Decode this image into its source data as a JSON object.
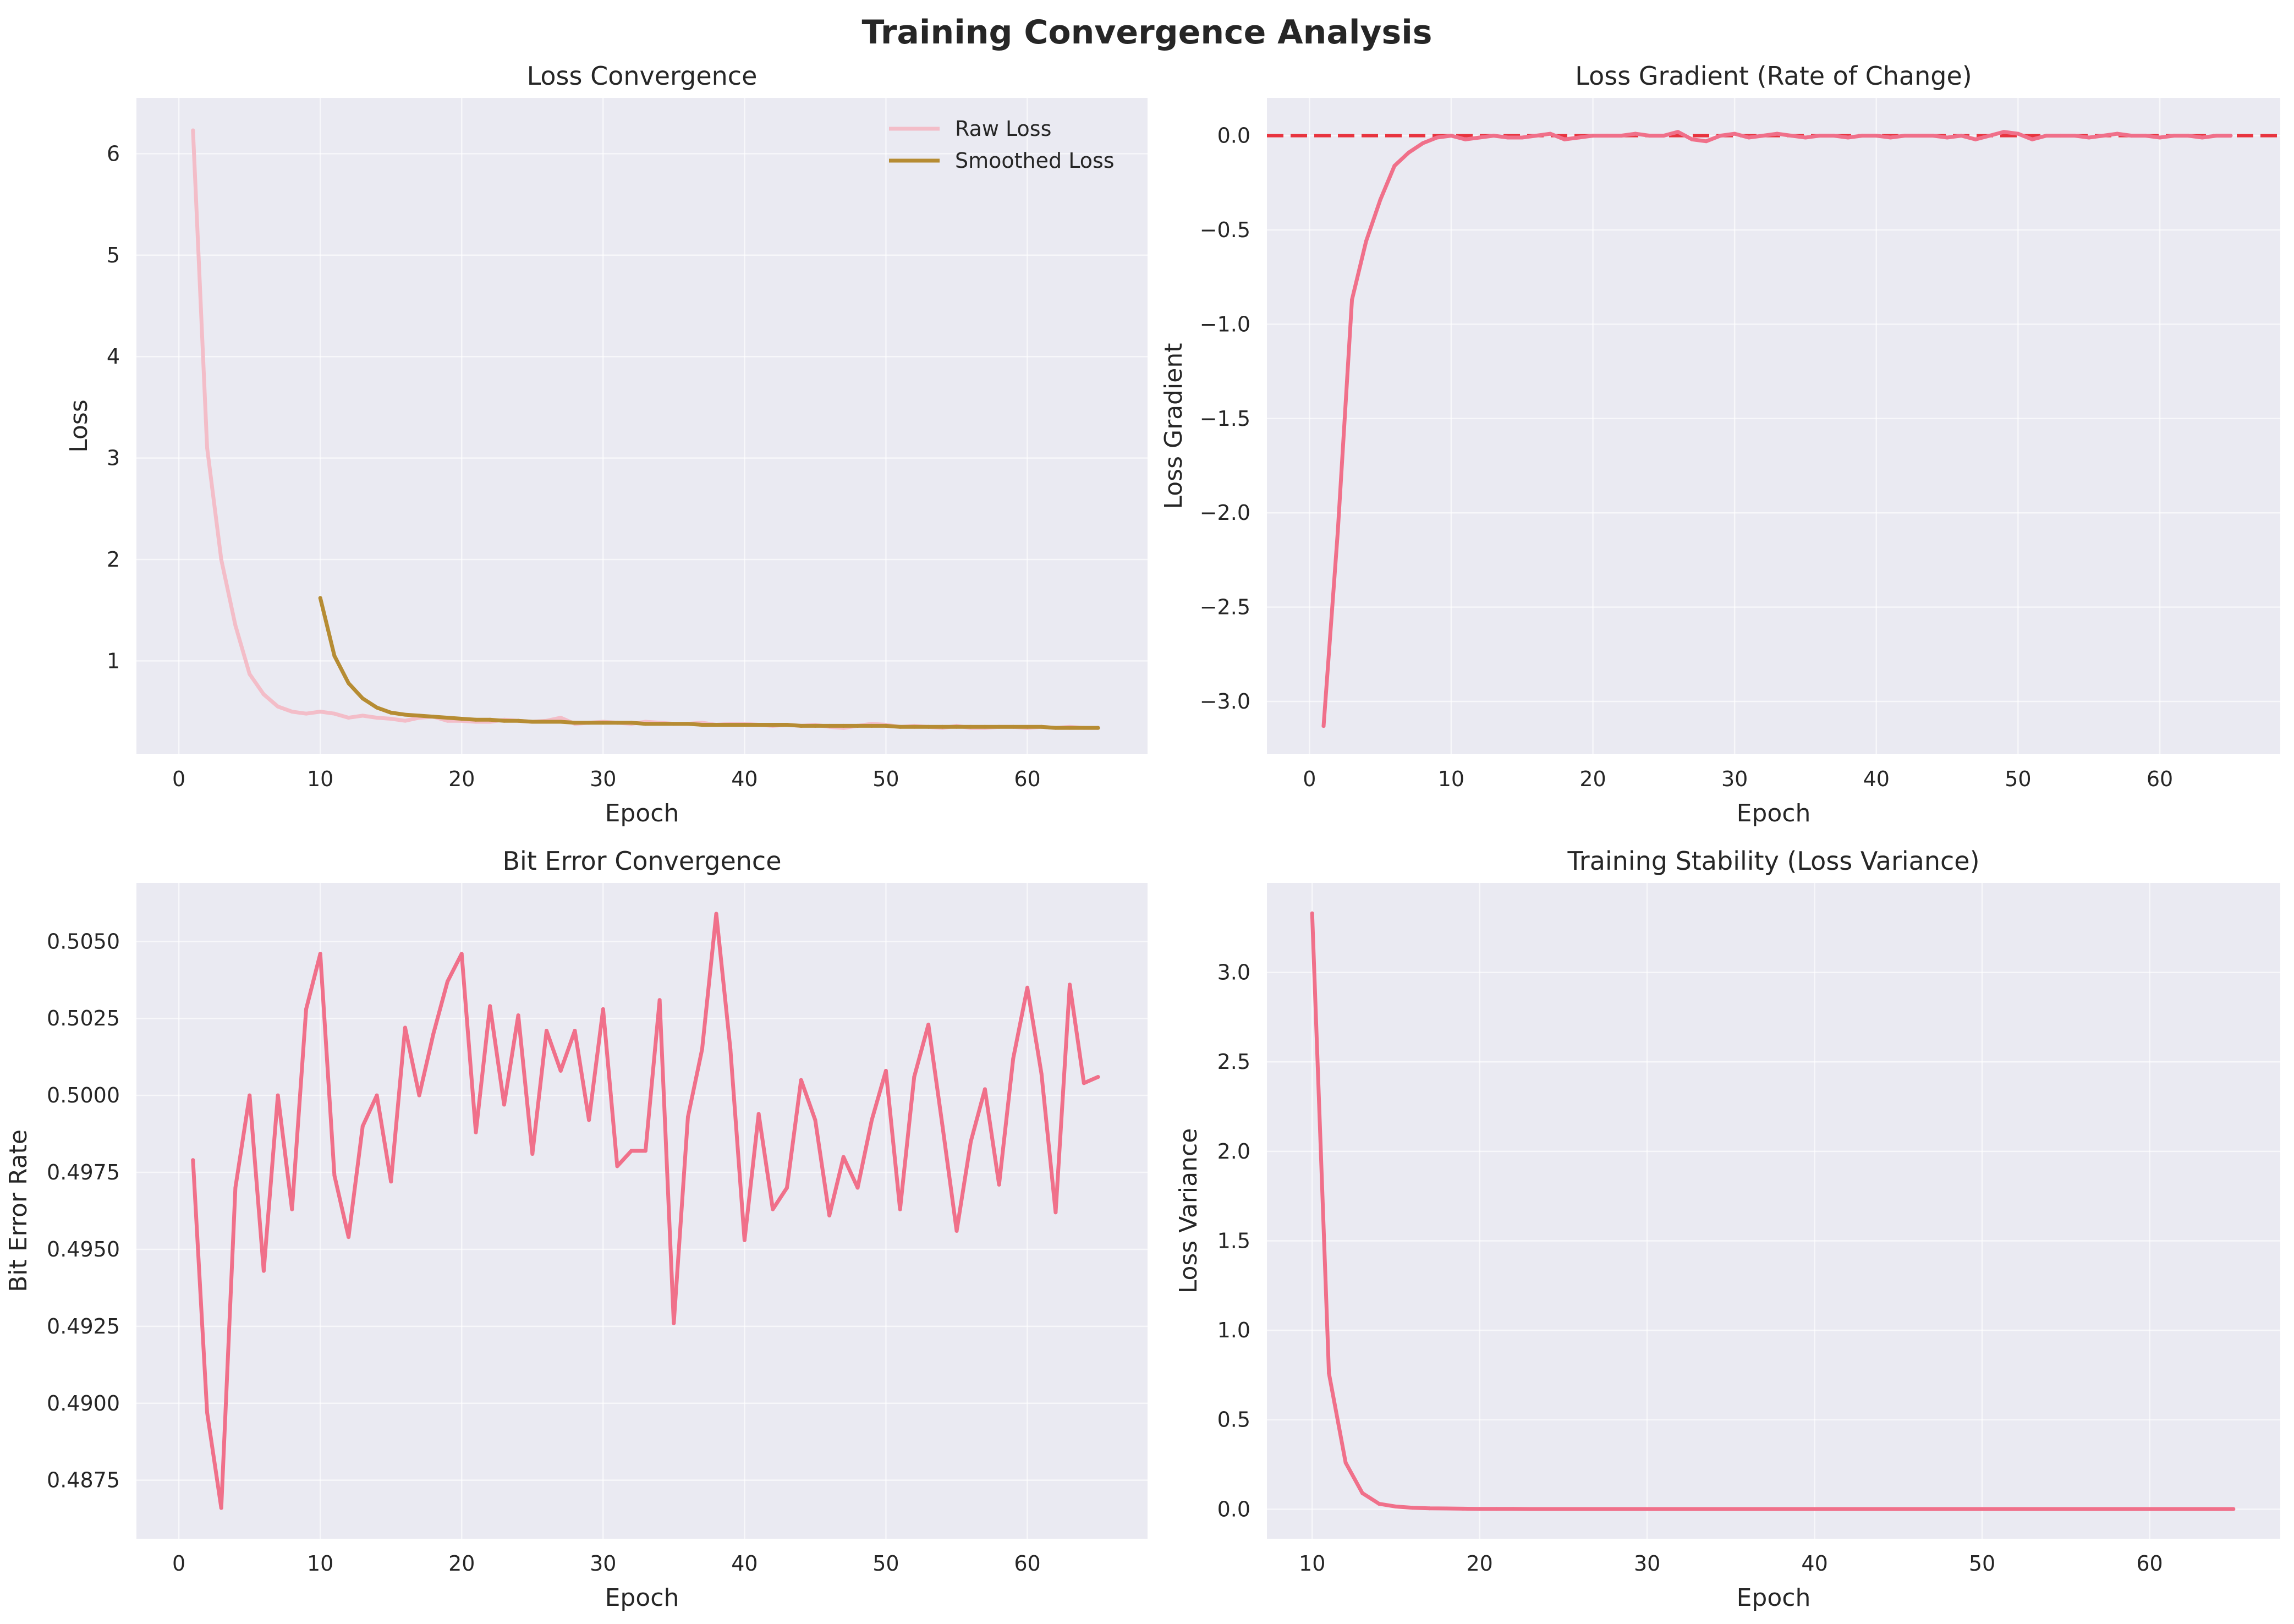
{
  "figure": {
    "title": "Training Convergence Analysis"
  },
  "colors": {
    "background": "#EAEAF2",
    "grid": "#FFFFFF",
    "main_line": "#F0708A",
    "raw_loss": "#F3BDC8",
    "smoothed_loss": "#B68C33",
    "zero_line": "#E8343F"
  },
  "chart_data": [
    {
      "id": "loss",
      "type": "line",
      "title": "Loss Convergence",
      "xlabel": "Epoch",
      "ylabel": "Loss",
      "xlim": [
        -3,
        68.5
      ],
      "ylim": [
        0.08,
        6.55
      ],
      "xticks": [
        0,
        10,
        20,
        30,
        40,
        50,
        60
      ],
      "yticks": [
        1,
        2,
        3,
        4,
        5,
        6
      ],
      "grid": true,
      "legend": "top-right",
      "series": [
        {
          "name": "Raw Loss",
          "color_key": "raw_loss",
          "x": [
            1,
            2,
            3,
            4,
            5,
            6,
            7,
            8,
            9,
            10,
            11,
            12,
            13,
            14,
            15,
            16,
            17,
            18,
            19,
            20,
            21,
            22,
            23,
            24,
            25,
            26,
            27,
            28,
            29,
            30,
            31,
            32,
            33,
            34,
            35,
            36,
            37,
            38,
            39,
            40,
            41,
            42,
            43,
            44,
            45,
            46,
            47,
            48,
            49,
            50,
            51,
            52,
            53,
            54,
            55,
            56,
            57,
            58,
            59,
            60,
            61,
            62,
            63,
            64,
            65
          ],
          "values": [
            6.23,
            3.1,
            2.0,
            1.35,
            0.87,
            0.67,
            0.55,
            0.5,
            0.48,
            0.5,
            0.48,
            0.44,
            0.46,
            0.44,
            0.43,
            0.41,
            0.44,
            0.45,
            0.41,
            0.41,
            0.4,
            0.4,
            0.42,
            0.41,
            0.4,
            0.41,
            0.44,
            0.38,
            0.39,
            0.4,
            0.39,
            0.38,
            0.4,
            0.39,
            0.38,
            0.38,
            0.39,
            0.37,
            0.38,
            0.38,
            0.37,
            0.36,
            0.37,
            0.36,
            0.37,
            0.35,
            0.34,
            0.36,
            0.38,
            0.37,
            0.35,
            0.36,
            0.35,
            0.34,
            0.36,
            0.34,
            0.34,
            0.35,
            0.35,
            0.34,
            0.35,
            0.34,
            0.35,
            0.34,
            0.34
          ]
        },
        {
          "name": "Smoothed Loss",
          "color_key": "smoothed_loss",
          "x": [
            10,
            11,
            12,
            13,
            14,
            15,
            16,
            17,
            18,
            19,
            20,
            21,
            22,
            23,
            24,
            25,
            26,
            27,
            28,
            29,
            30,
            31,
            32,
            33,
            34,
            35,
            36,
            37,
            38,
            39,
            40,
            41,
            42,
            43,
            44,
            45,
            46,
            47,
            48,
            49,
            50,
            51,
            52,
            53,
            54,
            55,
            56,
            57,
            58,
            59,
            60,
            61,
            62,
            63,
            64,
            65
          ],
          "values": [
            1.62,
            1.05,
            0.78,
            0.63,
            0.54,
            0.49,
            0.47,
            0.46,
            0.45,
            0.44,
            0.43,
            0.42,
            0.42,
            0.41,
            0.41,
            0.4,
            0.4,
            0.4,
            0.39,
            0.39,
            0.39,
            0.39,
            0.39,
            0.38,
            0.38,
            0.38,
            0.38,
            0.37,
            0.37,
            0.37,
            0.37,
            0.37,
            0.37,
            0.37,
            0.36,
            0.36,
            0.36,
            0.36,
            0.36,
            0.36,
            0.36,
            0.35,
            0.35,
            0.35,
            0.35,
            0.35,
            0.35,
            0.35,
            0.35,
            0.35,
            0.35,
            0.35,
            0.34,
            0.34,
            0.34,
            0.34
          ]
        }
      ]
    },
    {
      "id": "gradient",
      "type": "line",
      "title": "Loss Gradient (Rate of Change)",
      "xlabel": "Epoch",
      "ylabel": "Loss Gradient",
      "xlim": [
        -3,
        68.5
      ],
      "ylim": [
        -3.28,
        0.2
      ],
      "xticks": [
        0,
        10,
        20,
        30,
        40,
        50,
        60
      ],
      "yticks": [
        0.0,
        -0.5,
        -1.0,
        -1.5,
        -2.0,
        -2.5,
        -3.0
      ],
      "ytick_labels": [
        "0.0",
        "−0.5",
        "−1.0",
        "−1.5",
        "−2.0",
        "−2.5",
        "−3.0"
      ],
      "grid": true,
      "reference_line_y": 0,
      "series": [
        {
          "color_key": "main_line",
          "x": [
            1,
            2,
            3,
            4,
            5,
            6,
            7,
            8,
            9,
            10,
            11,
            12,
            13,
            14,
            15,
            16,
            17,
            18,
            19,
            20,
            21,
            22,
            23,
            24,
            25,
            26,
            27,
            28,
            29,
            30,
            31,
            32,
            33,
            34,
            35,
            36,
            37,
            38,
            39,
            40,
            41,
            42,
            43,
            44,
            45,
            46,
            47,
            48,
            49,
            50,
            51,
            52,
            53,
            54,
            55,
            56,
            57,
            58,
            59,
            60,
            61,
            62,
            63,
            64,
            65
          ],
          "values": [
            -3.13,
            -2.1,
            -0.87,
            -0.56,
            -0.34,
            -0.16,
            -0.09,
            -0.04,
            -0.01,
            0.0,
            -0.02,
            -0.01,
            0.0,
            -0.01,
            -0.01,
            0.0,
            0.01,
            -0.02,
            -0.01,
            0.0,
            0.0,
            0.0,
            0.01,
            0.0,
            0.0,
            0.02,
            -0.02,
            -0.03,
            0.0,
            0.01,
            -0.01,
            0.0,
            0.01,
            0.0,
            -0.01,
            0.0,
            0.0,
            -0.01,
            0.0,
            0.0,
            -0.01,
            0.0,
            0.0,
            0.0,
            -0.01,
            0.0,
            -0.02,
            0.0,
            0.02,
            0.01,
            -0.02,
            0.0,
            0.0,
            0.0,
            -0.01,
            0.0,
            0.01,
            0.0,
            0.0,
            -0.01,
            0.0,
            0.0,
            -0.01,
            0.0,
            0.0
          ]
        }
      ]
    },
    {
      "id": "bit-error",
      "type": "line",
      "title": "Bit Error Convergence",
      "xlabel": "Epoch",
      "ylabel": "Bit Error Rate",
      "xlim": [
        -3,
        68.5
      ],
      "ylim": [
        0.4856,
        0.5069
      ],
      "xticks": [
        0,
        10,
        20,
        30,
        40,
        50,
        60
      ],
      "yticks": [
        0.4875,
        0.49,
        0.4925,
        0.495,
        0.4975,
        0.5,
        0.5025,
        0.505
      ],
      "ytick_labels": [
        "0.4875",
        "0.4900",
        "0.4925",
        "0.4950",
        "0.4975",
        "0.5000",
        "0.5025",
        "0.5050"
      ],
      "grid": true,
      "series": [
        {
          "color_key": "main_line",
          "x": [
            1,
            2,
            3,
            4,
            5,
            6,
            7,
            8,
            9,
            10,
            11,
            12,
            13,
            14,
            15,
            16,
            17,
            18,
            19,
            20,
            21,
            22,
            23,
            24,
            25,
            26,
            27,
            28,
            29,
            30,
            31,
            32,
            33,
            34,
            35,
            36,
            37,
            38,
            39,
            40,
            41,
            42,
            43,
            44,
            45,
            46,
            47,
            48,
            49,
            50,
            51,
            52,
            53,
            54,
            55,
            56,
            57,
            58,
            59,
            60,
            61,
            62,
            63,
            64,
            65
          ],
          "values": [
            0.4979,
            0.4897,
            0.4866,
            0.497,
            0.5,
            0.4943,
            0.5,
            0.4963,
            0.5028,
            0.5046,
            0.4974,
            0.4954,
            0.499,
            0.5,
            0.4972,
            0.5022,
            0.5,
            0.502,
            0.5037,
            0.5046,
            0.4988,
            0.5029,
            0.4997,
            0.5026,
            0.4981,
            0.5021,
            0.5008,
            0.5021,
            0.4992,
            0.5028,
            0.4977,
            0.4982,
            0.4982,
            0.5031,
            0.4926,
            0.4993,
            0.5015,
            0.5059,
            0.5015,
            0.4953,
            0.4994,
            0.4963,
            0.497,
            0.5005,
            0.4992,
            0.4961,
            0.498,
            0.497,
            0.4992,
            0.5008,
            0.4963,
            0.5006,
            0.5023,
            0.499,
            0.4956,
            0.4985,
            0.5002,
            0.4971,
            0.5012,
            0.5035,
            0.5007,
            0.4962,
            0.5036,
            0.5004,
            0.5006
          ]
        }
      ]
    },
    {
      "id": "stability",
      "type": "line",
      "title": "Training Stability (Loss Variance)",
      "xlabel": "Epoch",
      "ylabel": "Loss Variance",
      "xlim": [
        7.3,
        67.8
      ],
      "ylim": [
        -0.165,
        3.5
      ],
      "xticks": [
        10,
        20,
        30,
        40,
        50,
        60
      ],
      "yticks": [
        0.0,
        0.5,
        1.0,
        1.5,
        2.0,
        2.5,
        3.0
      ],
      "ytick_labels": [
        "0.0",
        "0.5",
        "1.0",
        "1.5",
        "2.0",
        "2.5",
        "3.0"
      ],
      "grid": true,
      "series": [
        {
          "color_key": "main_line",
          "x": [
            10,
            11,
            12,
            13,
            14,
            15,
            16,
            17,
            18,
            19,
            20,
            21,
            22,
            23,
            24,
            25,
            26,
            27,
            28,
            29,
            30,
            31,
            32,
            33,
            34,
            35,
            36,
            37,
            38,
            39,
            40,
            41,
            42,
            43,
            44,
            45,
            46,
            47,
            48,
            49,
            50,
            51,
            52,
            53,
            54,
            55,
            56,
            57,
            58,
            59,
            60,
            61,
            62,
            63,
            64,
            65
          ],
          "values": [
            3.33,
            0.76,
            0.26,
            0.09,
            0.03,
            0.015,
            0.008,
            0.005,
            0.004,
            0.003,
            0.002,
            0.002,
            0.002,
            0.001,
            0.001,
            0.001,
            0.001,
            0.001,
            0.001,
            0.001,
            0.001,
            0.001,
            0.001,
            0.001,
            0.001,
            0.001,
            0.001,
            0.001,
            0.001,
            0.001,
            0.001,
            0.001,
            0.001,
            0.001,
            0.001,
            0.001,
            0.001,
            0.001,
            0.001,
            0.001,
            0.001,
            0.001,
            0.001,
            0.001,
            0.001,
            0.001,
            0.001,
            0.001,
            0.001,
            0.001,
            0.001,
            0.001,
            0.001,
            0.001,
            0.001,
            0.001
          ]
        }
      ]
    }
  ]
}
